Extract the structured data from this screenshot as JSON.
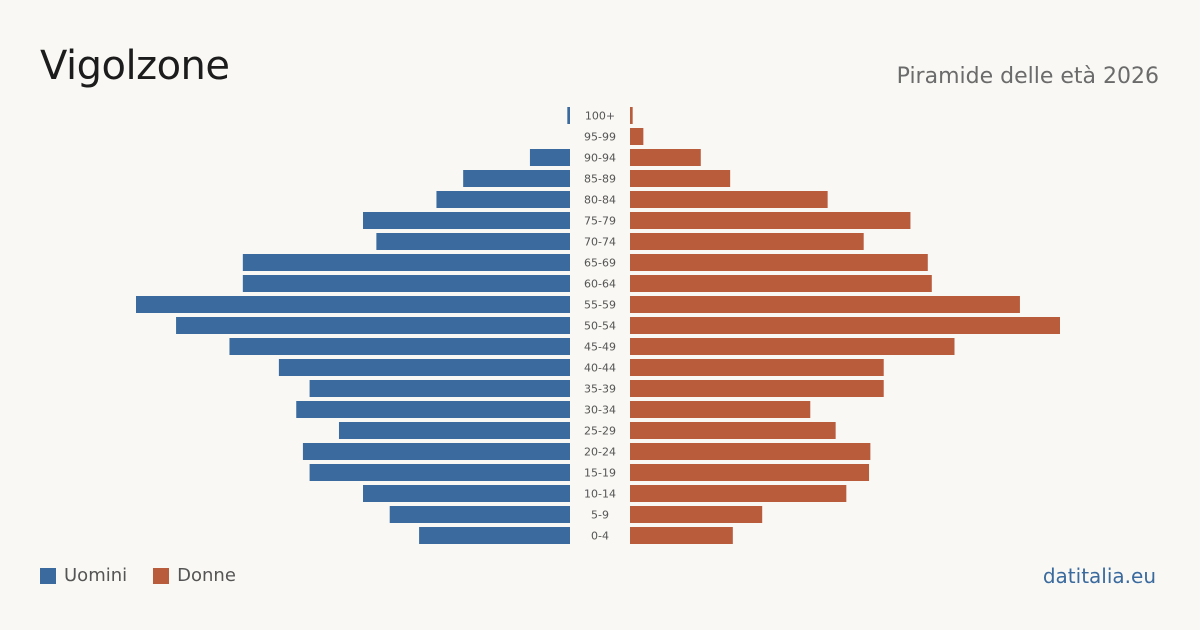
{
  "header": {
    "title": "Vigolzone",
    "subtitle": "Piramide delle età 2026"
  },
  "legend": {
    "men_label": "Uomini",
    "women_label": "Donne"
  },
  "footer": {
    "source": "datitalia.eu"
  },
  "colors": {
    "men": "#3a6a9e",
    "women": "#b95c3c",
    "background": "#f9f8f4"
  },
  "chart_data": {
    "type": "bar",
    "orientation": "horizontal-pyramid",
    "categories": [
      "100+",
      "95-99",
      "90-94",
      "85-89",
      "80-84",
      "75-79",
      "70-74",
      "65-69",
      "60-64",
      "55-59",
      "50-54",
      "45-49",
      "40-44",
      "35-39",
      "30-34",
      "25-29",
      "20-24",
      "15-19",
      "10-14",
      "5-9",
      "0-4"
    ],
    "series": [
      {
        "name": "Uomini",
        "values": [
          0.2,
          0,
          3,
          8,
          10,
          15.5,
          14.5,
          24.5,
          24.5,
          32.5,
          29.5,
          25.5,
          21.8,
          19.5,
          20.5,
          17.3,
          20,
          19.5,
          15.5,
          13.5,
          11.3
        ]
      },
      {
        "name": "Donne",
        "values": [
          0.2,
          1,
          5.3,
          7.5,
          14.8,
          21,
          17.5,
          22.3,
          22.6,
          29.2,
          32.2,
          24.3,
          19,
          19,
          13.5,
          15.4,
          18,
          17.9,
          16.2,
          9.9,
          7.7
        ]
      }
    ],
    "xlim": [
      0,
      32.2
    ],
    "grid": false,
    "legend_position": "bottom-left"
  }
}
